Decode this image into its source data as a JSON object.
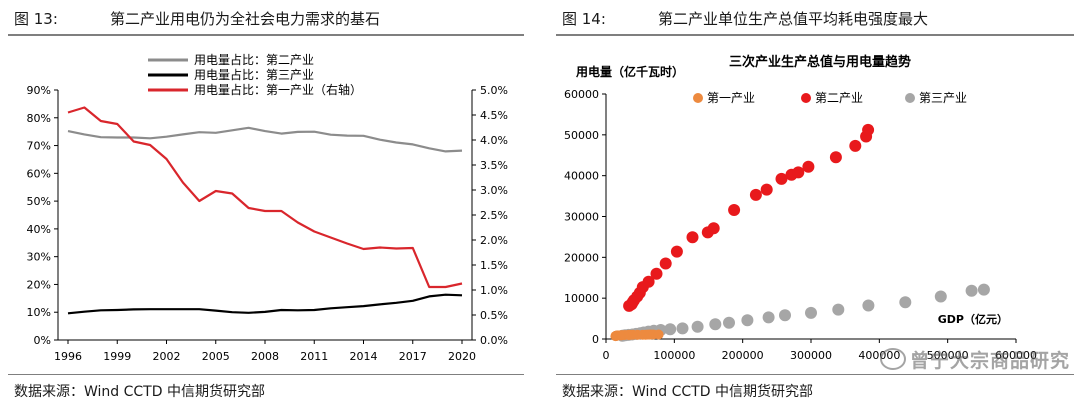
{
  "left": {
    "figure_label": "图 13:",
    "title": "第二产业用电仍为全社会电力需求的基石",
    "source": "数据来源：Wind CCTD 中信期货研究部"
  },
  "right": {
    "figure_label": "图 14:",
    "title": "第二产业单位生产总值平均耗电强度最大",
    "source": "数据来源：Wind CCTD 中信期货研究部"
  },
  "watermark": "曾宁大宗商品研究",
  "chart_data": [
    {
      "type": "line",
      "title": "",
      "xlabel": "",
      "ylabel": "",
      "x": [
        1996,
        1997,
        1998,
        1999,
        2000,
        2001,
        2002,
        2003,
        2004,
        2005,
        2006,
        2007,
        2008,
        2009,
        2010,
        2011,
        2012,
        2013,
        2014,
        2015,
        2016,
        2017,
        2018,
        2019,
        2020
      ],
      "x_ticks": [
        1996,
        1999,
        2002,
        2005,
        2008,
        2011,
        2014,
        2017,
        2020
      ],
      "ylim": [
        0,
        90
      ],
      "y_ticks": [
        "0%",
        "10%",
        "20%",
        "30%",
        "40%",
        "50%",
        "60%",
        "70%",
        "80%",
        "90%"
      ],
      "y2lim": [
        0,
        5
      ],
      "y2_ticks": [
        "0.0%",
        "0.5%",
        "1.0%",
        "1.5%",
        "2.0%",
        "2.5%",
        "3.0%",
        "3.5%",
        "4.0%",
        "4.5%",
        "5.0%"
      ],
      "legend_position": "top-center",
      "series": [
        {
          "name": "用电量占比：第二产业",
          "axis": "left",
          "color": "#8c8c8c",
          "values": [
            75.2,
            74.0,
            73.0,
            72.9,
            72.9,
            72.6,
            73.2,
            74.0,
            74.8,
            74.6,
            75.5,
            76.4,
            75.2,
            74.3,
            74.9,
            75.0,
            73.9,
            73.6,
            73.5,
            72.1,
            71.1,
            70.4,
            69.0,
            67.9,
            68.2
          ]
        },
        {
          "name": "用电量占比：第三产业",
          "axis": "left",
          "color": "#000000",
          "values": [
            9.6,
            10.2,
            10.7,
            10.8,
            11.0,
            11.1,
            11.1,
            11.1,
            11.1,
            10.6,
            10.0,
            9.8,
            10.1,
            10.8,
            10.7,
            10.8,
            11.4,
            11.8,
            12.2,
            12.8,
            13.4,
            14.1,
            15.7,
            16.3,
            16.1
          ]
        },
        {
          "name": "用电量占比：第一产业（右轴）",
          "axis": "right",
          "color": "#d9262c",
          "values": [
            4.55,
            4.65,
            4.38,
            4.32,
            3.97,
            3.9,
            3.62,
            3.15,
            2.78,
            2.98,
            2.93,
            2.64,
            2.58,
            2.58,
            2.35,
            2.17,
            2.05,
            1.93,
            1.82,
            1.85,
            1.83,
            1.84,
            1.06,
            1.06,
            1.13
          ]
        }
      ]
    },
    {
      "type": "scatter",
      "title": "三次产业生产总值与用电量趋势",
      "xlabel": "GDP（亿元）",
      "ylabel": "用电量（亿千瓦时）",
      "xlim": [
        0,
        600000
      ],
      "ylim": [
        0,
        60000
      ],
      "x_ticks": [
        "0",
        "100000",
        "200000",
        "300000",
        "400000",
        "500000",
        "600000"
      ],
      "y_ticks": [
        "0",
        "10000",
        "20000",
        "30000",
        "40000",
        "50000",
        "60000"
      ],
      "legend_position": "top",
      "series": [
        {
          "name": "第一产业",
          "color": "#ed8a3f",
          "points": [
            [
              13800,
              700
            ],
            [
              14300,
              720
            ],
            [
              14600,
              750
            ],
            [
              14800,
              780
            ],
            [
              15000,
              800
            ],
            [
              15300,
              820
            ],
            [
              15800,
              840
            ],
            [
              16500,
              860
            ],
            [
              17400,
              880
            ],
            [
              21400,
              900
            ],
            [
              22400,
              920
            ],
            [
              24000,
              950
            ],
            [
              27700,
              980
            ],
            [
              32500,
              1000
            ],
            [
              33700,
              1000
            ],
            [
              35200,
              1010
            ],
            [
              39400,
              1030
            ],
            [
              46200,
              1040
            ],
            [
              53500,
              1050
            ],
            [
              58000,
              1060
            ],
            [
              61000,
              1070
            ],
            [
              63700,
              1080
            ],
            [
              65500,
              1090
            ],
            [
              69400,
              1100
            ],
            [
              77000,
              1110
            ]
          ]
        },
        {
          "name": "第二产业",
          "color": "#e8191c",
          "points": [
            [
              33800,
              8100
            ],
            [
              37500,
              8500
            ],
            [
              39000,
              9000
            ],
            [
              41000,
              9500
            ],
            [
              45600,
              10400
            ],
            [
              49500,
              11300
            ],
            [
              53900,
              12700
            ],
            [
              62400,
              14000
            ],
            [
              73900,
              16000
            ],
            [
              87400,
              18500
            ],
            [
              103700,
              21400
            ],
            [
              126600,
              24900
            ],
            [
              149000,
              26100
            ],
            [
              157600,
              27100
            ],
            [
              187400,
              31600
            ],
            [
              219400,
              35300
            ],
            [
              235200,
              36600
            ],
            [
              256800,
              39200
            ],
            [
              271400,
              40200
            ],
            [
              281400,
              40800
            ],
            [
              296200,
              42200
            ],
            [
              336400,
              44500
            ],
            [
              364800,
              47300
            ],
            [
              380700,
              49600
            ],
            [
              383600,
              51200
            ]
          ]
        },
        {
          "name": "第三产业",
          "color": "#a6a6a6",
          "points": [
            [
              24000,
              800
            ],
            [
              28000,
              900
            ],
            [
              33000,
              1000
            ],
            [
              38700,
              1100
            ],
            [
              44000,
              1250
            ],
            [
              49900,
              1400
            ],
            [
              55000,
              1600
            ],
            [
              62000,
              1800
            ],
            [
              70000,
              2000
            ],
            [
              80000,
              2200
            ],
            [
              94000,
              2400
            ],
            [
              112000,
              2600
            ],
            [
              134000,
              3000
            ],
            [
              160000,
              3600
            ],
            [
              180000,
              4000
            ],
            [
              207000,
              4600
            ],
            [
              238000,
              5300
            ],
            [
              262000,
              5800
            ],
            [
              300000,
              6400
            ],
            [
              340000,
              7200
            ],
            [
              384000,
              8200
            ],
            [
              438000,
              9000
            ],
            [
              490000,
              10400
            ],
            [
              535000,
              11800
            ],
            [
              553000,
              12100
            ]
          ]
        }
      ]
    }
  ]
}
